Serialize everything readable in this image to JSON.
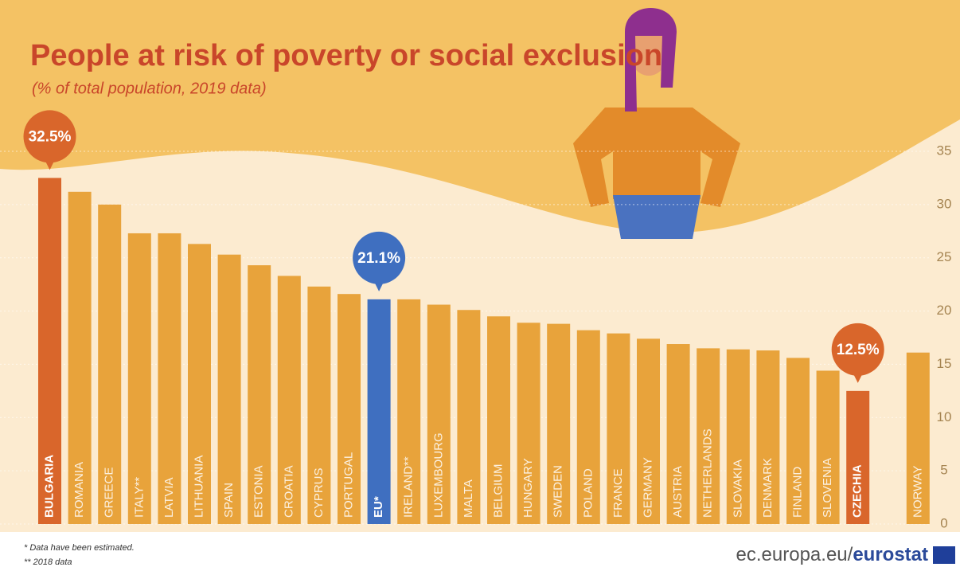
{
  "chart_data": {
    "type": "bar",
    "title": "People at risk of poverty or social exclusion",
    "subtitle": "(% of total population, 2019 data)",
    "categories": [
      "BULGARIA",
      "ROMANIA",
      "GREECE",
      "ITALY**",
      "LATVIA",
      "LITHUANIA",
      "SPAIN",
      "ESTONIA",
      "CROATIA",
      "CYPRUS",
      "PORTUGAL",
      "EU*",
      "IRELAND**",
      "LUXEMBOURG",
      "MALTA",
      "BELGIUM",
      "HUNGARY",
      "SWEDEN",
      "POLAND",
      "FRANCE",
      "GERMANY",
      "AUSTRIA",
      "NETHERLANDS",
      "SLOVAKIA",
      "DENMARK",
      "FINLAND",
      "SLOVENIA",
      "CZECHIA",
      "NORWAY"
    ],
    "values": [
      32.5,
      31.2,
      30.0,
      27.3,
      27.3,
      26.3,
      25.3,
      24.3,
      23.3,
      22.3,
      21.6,
      21.1,
      21.1,
      20.6,
      20.1,
      19.5,
      18.9,
      18.8,
      18.2,
      17.9,
      17.4,
      16.9,
      16.5,
      16.4,
      16.3,
      15.6,
      14.4,
      12.5,
      16.1
    ],
    "value_labels": [
      "32.5%",
      null,
      null,
      null,
      null,
      null,
      null,
      null,
      null,
      null,
      null,
      "21.1%",
      null,
      null,
      null,
      null,
      null,
      null,
      null,
      null,
      null,
      null,
      null,
      null,
      null,
      null,
      null,
      "12.5%",
      null
    ],
    "colors": [
      "#d9662b",
      "#e8a33b",
      "#e8a33b",
      "#e8a33b",
      "#e8a33b",
      "#e8a33b",
      "#e8a33b",
      "#e8a33b",
      "#e8a33b",
      "#e8a33b",
      "#e8a33b",
      "#3f6fc0",
      "#e8a33b",
      "#e8a33b",
      "#e8a33b",
      "#e8a33b",
      "#e8a33b",
      "#e8a33b",
      "#e8a33b",
      "#e8a33b",
      "#e8a33b",
      "#e8a33b",
      "#e8a33b",
      "#e8a33b",
      "#e8a33b",
      "#e8a33b",
      "#e8a33b",
      "#d9662b",
      "#e8a33b"
    ],
    "ylim": [
      0,
      35
    ],
    "yticks": [
      0,
      5,
      10,
      15,
      20,
      25,
      30,
      35
    ],
    "grid": true,
    "footnotes": [
      "* Data have been estimated.",
      "** 2018 data"
    ],
    "source": "ec.europa.eu/",
    "brand": "eurostat"
  }
}
